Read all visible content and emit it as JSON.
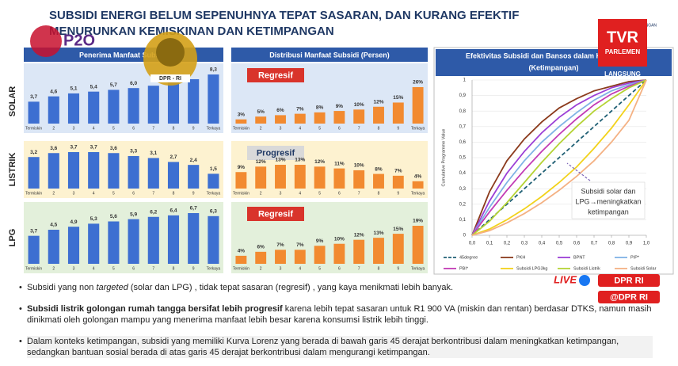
{
  "header": {
    "title_lines": [
      "SUBSIDI ENERGI BELUM SEPENUHNYA TEPAT SASARAN, DAN KURANG EFEKTIF",
      "MENURUNKAN  KEMISKINAN DAN KETIMPANGAN"
    ]
  },
  "panel_titles": [
    "Penerima Manfaat Subsidi",
    "Distribusi Manfaat Subsidi (Persen)"
  ],
  "row_labels": [
    "SOLAR",
    "LISTRIK",
    "LPG"
  ],
  "chart_data": [
    {
      "type": "bar",
      "categories": [
        "Termiskin",
        "2",
        "3",
        "4",
        "5",
        "6",
        "7",
        "8",
        "9",
        "Terkaya"
      ],
      "values": [
        3.7,
        4.6,
        5.1,
        5.4,
        5.7,
        6.0,
        6.4,
        7.0,
        7.5,
        8.3
      ],
      "value_labels": [
        "3,7",
        "4,6",
        "5,1",
        "5,4",
        "5,7",
        "6,0",
        null,
        null,
        null,
        "8,3"
      ],
      "color": "#3d6fd1"
    },
    {
      "type": "bar",
      "categories": [
        "Termiskin",
        "2",
        "3",
        "4",
        "5",
        "6",
        "7",
        "8",
        "9",
        "Terkaya"
      ],
      "values": [
        3.2,
        3.6,
        3.7,
        3.7,
        3.6,
        3.3,
        3.1,
        2.7,
        2.4,
        1.5
      ],
      "value_labels": [
        "3,2",
        "3,6",
        "3,7",
        "3,7",
        "3,6",
        "3,3",
        "3,1",
        "2,7",
        "2,4",
        "1,5"
      ],
      "color": "#3d6fd1"
    },
    {
      "type": "bar",
      "categories": [
        "Termiskin",
        "2",
        "3",
        "4",
        "5",
        "6",
        "7",
        "8",
        "9",
        "Terkaya"
      ],
      "values": [
        3.7,
        4.5,
        4.9,
        5.3,
        5.6,
        5.9,
        6.2,
        6.4,
        6.7,
        6.3
      ],
      "value_labels": [
        "3,7",
        "4,5",
        "4,9",
        "5,3",
        "5,6",
        "5,9",
        "6,2",
        "6,4",
        "6,7",
        "6,3"
      ],
      "color": "#3d6fd1"
    },
    {
      "type": "bar",
      "annotation": "Regresif",
      "annotation_fill": "#d9342b",
      "annotation_text_color": "#ffffff",
      "categories": [
        "Termiskin",
        "2",
        "3",
        "4",
        "5",
        "6",
        "7",
        "8",
        "9",
        "Terkaya"
      ],
      "values": [
        3,
        5,
        6,
        7,
        8,
        9,
        10,
        12,
        15,
        26
      ],
      "value_labels": [
        "3%",
        "5%",
        "6%",
        "7%",
        "8%",
        "9%",
        "10%",
        "12%",
        "15%",
        "26%"
      ],
      "color": "#f28a30"
    },
    {
      "type": "bar",
      "annotation": "Progresif",
      "annotation_fill": "#d9d9d9",
      "annotation_text_color": "#1f3864",
      "categories": [
        "Termiskin",
        "2",
        "3",
        "4",
        "5",
        "6",
        "7",
        "8",
        "9",
        "Terkaya"
      ],
      "values": [
        9,
        12,
        13,
        13,
        12,
        11,
        10,
        8,
        7,
        4
      ],
      "value_labels": [
        "9%",
        "12%",
        "13%",
        "13%",
        "12%",
        "11%",
        "10%",
        "8%",
        "7%",
        "4%"
      ],
      "color": "#f28a30"
    },
    {
      "type": "bar",
      "annotation": "Regresif",
      "annotation_fill": "#d9342b",
      "annotation_text_color": "#ffffff",
      "categories": [
        "Termiskin",
        "2",
        "3",
        "4",
        "5",
        "6",
        "7",
        "8",
        "9",
        "Terkaya"
      ],
      "values": [
        4,
        6,
        7,
        7,
        9,
        10,
        12,
        13,
        15,
        19
      ],
      "value_labels": [
        "4%",
        "6%",
        "7%",
        "7%",
        "9%",
        "10%",
        "12%",
        "13%",
        "15%",
        "19%"
      ],
      "color": "#f28a30"
    },
    {
      "type": "line",
      "title": "Efektivitas Subsidi dan Bansos dalam Kurva Lorenz",
      "subtitle": "(Ketimpangan)",
      "y_label": "Cumulative Programme Value",
      "annotation": [
        "Subsidi solar dan",
        "LPG→meningkatkan",
        "ketimpangan"
      ],
      "x": [
        0,
        0.1,
        0.2,
        0.3,
        0.4,
        0.5,
        0.6,
        0.7,
        0.8,
        0.9,
        1
      ],
      "xlim": [
        0,
        1
      ],
      "ylim": [
        0,
        1
      ],
      "xticks": [
        {
          "value": 0,
          "label": "0,0"
        },
        {
          "value": 0.1,
          "label": "0,1"
        },
        {
          "value": 0.2,
          "label": "0,2"
        },
        {
          "value": 0.3,
          "label": "0,3"
        },
        {
          "value": 0.4,
          "label": "0,4"
        },
        {
          "value": 0.5,
          "label": "0,5"
        },
        {
          "value": 0.6,
          "label": "0,6"
        },
        {
          "value": 0.7,
          "label": "0,7"
        },
        {
          "value": 0.8,
          "label": "0,8"
        },
        {
          "value": 0.9,
          "label": "0,9"
        },
        {
          "value": 1,
          "label": "1,0"
        }
      ],
      "yticks": [
        0,
        {
          "value": 0.1,
          "label": "0,1"
        },
        {
          "value": 0.2,
          "label": "0,2"
        },
        {
          "value": 0.3,
          "label": "0,3"
        },
        {
          "value": 0.4,
          "label": "0,4"
        },
        {
          "value": 0.5,
          "label": "0,5"
        },
        {
          "value": 0.6,
          "label": "0,6"
        },
        {
          "value": 0.7,
          "label": "0,7"
        },
        {
          "value": 0.8,
          "label": "0,8"
        },
        {
          "value": 0.9,
          "label": "0,9"
        },
        1
      ],
      "series": [
        {
          "name": "45degree",
          "color": "#1f5f74",
          "dashed": true,
          "values": [
            0,
            0.1,
            0.2,
            0.3,
            0.4,
            0.5,
            0.6,
            0.7,
            0.8,
            0.9,
            1
          ]
        },
        {
          "name": "PKH",
          "color": "#8b3a1c",
          "values": [
            0,
            0.28,
            0.48,
            0.62,
            0.73,
            0.82,
            0.88,
            0.93,
            0.96,
            0.99,
            1
          ]
        },
        {
          "name": "BPNT",
          "color": "#9b3fd6",
          "values": [
            0,
            0.22,
            0.4,
            0.54,
            0.66,
            0.76,
            0.84,
            0.9,
            0.95,
            0.98,
            1
          ]
        },
        {
          "name": "PIP*",
          "color": "#7fb2e5",
          "values": [
            0,
            0.18,
            0.34,
            0.48,
            0.6,
            0.7,
            0.79,
            0.87,
            0.93,
            0.97,
            1
          ]
        },
        {
          "name": "PBI*",
          "color": "#c23bb5",
          "values": [
            0,
            0.15,
            0.29,
            0.42,
            0.54,
            0.65,
            0.75,
            0.84,
            0.91,
            0.96,
            1
          ]
        },
        {
          "name": "Subsidi LPG3kg",
          "color": "#f2d21b",
          "values": [
            0,
            0.04,
            0.1,
            0.17,
            0.25,
            0.34,
            0.44,
            0.56,
            0.69,
            0.84,
            1
          ]
        },
        {
          "name": "Subsidi Listrik",
          "color": "#b5d335",
          "values": [
            0,
            0.09,
            0.21,
            0.34,
            0.47,
            0.59,
            0.7,
            0.8,
            0.88,
            0.95,
            1
          ]
        },
        {
          "name": "Subsidi Solar",
          "color": "#f4b183",
          "values": [
            0,
            0.03,
            0.08,
            0.14,
            0.21,
            0.29,
            0.38,
            0.48,
            0.6,
            0.74,
            1
          ]
        }
      ]
    }
  ],
  "bullets": [
    [
      "Subsidi yang non ",
      "targeted",
      " (solar dan LPG) , tidak tepat sasaran (regresif) , yang kaya menikmati lebih banyak."
    ],
    [
      "Subsidi listrik golongan rumah tangga bersifat lebih progresif",
      " karena lebih tepat sasaran untuk R1 900 VA (miskin dan rentan) berdasar  DTKS, namun masih dinikmati oleh golongan mampu yang menerima manfaat lebih besar karena konsumsi listrik lebih tinggi."
    ],
    [
      "Dalam konteks ketimpangan, subsidi yang memiliki Kurva Lorenz yang berada di bawah garis 45 derajat berkontribusi dalam  meningkatkan ketimpangan, sedangkan bantuan sosial berada di atas garis 45 derajat berkontribusi dalam mengurangi ketimpangan."
    ]
  ],
  "overlays": {
    "p2o": "P2O",
    "dpr_emblem": "DPR - RI",
    "tv_logo": "TVR",
    "tv_sub": "PARLEMEN",
    "live_label": "LANGSUNG",
    "live": "LIVE",
    "dpr_handle": "DPR RI",
    "social_handle": "@DPR RI",
    "ministry": "KEUANGAN"
  }
}
